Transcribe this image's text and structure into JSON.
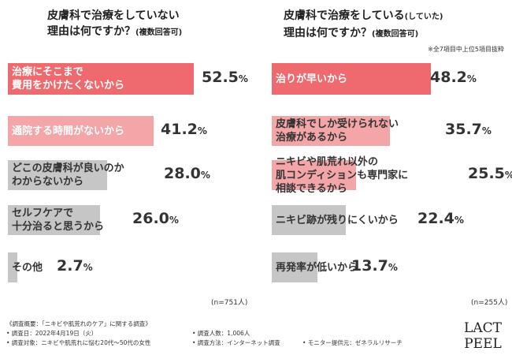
{
  "colors": {
    "dark": "#ee6a6e",
    "light": "#f4a5a7",
    "gray": "#c6c6c6",
    "text_on_dark": "#ffffff",
    "text_on_light": "#ffffff",
    "text_on_gray": "#333333"
  },
  "left": {
    "title_line1": "皮膚科で治療をしていない",
    "title_line2": "理由は何ですか？",
    "title_paren": "(複数回答可)",
    "n_label": "(n=751人)",
    "chart_data": {
      "type": "bar",
      "categories": [
        "治療にそこまで\n費用をかけたくないから",
        "通院する時間がないから",
        "どこの皮膚科が良いのか\nわからないから",
        "セルフケアで\n十分治ると思うから",
        "その他"
      ],
      "values": [
        52.5,
        41.2,
        28.0,
        26.0,
        2.7
      ],
      "value_labels": [
        "52.5",
        "41.2",
        "28.0",
        "26.0",
        "2.7"
      ],
      "unit": "%",
      "ylim": [
        0,
        60
      ]
    }
  },
  "right": {
    "title_line1": "皮膚科で治療をしている",
    "title_paren1": "(していた)",
    "title_line2": "理由は何ですか？",
    "title_paren2": "(複数回答可)",
    "note": "※全7項目中上位5項目抜粋",
    "n_label": "(n=255人)",
    "chart_data": {
      "type": "bar",
      "categories": [
        "治りが早いから",
        "皮膚科でしか受けられない\n治療があるから",
        "ニキビや肌荒れ以外の\n肌コンディションも専門家に\n相談できるから",
        "ニキビ跡が残りにくいから",
        "再発率が低いから"
      ],
      "values": [
        48.2,
        35.7,
        25.5,
        22.4,
        13.7
      ],
      "value_labels": [
        "48.2",
        "35.7",
        "25.5",
        "22.4",
        "13.7"
      ],
      "unit": "%",
      "ylim": [
        0,
        60
      ]
    }
  },
  "footer": {
    "survey": "《調査概要：「ニキビや肌荒れのケア」に関する調査》",
    "date": "• 調査日：2022年4月19日（火）",
    "target": "• 調査対象：ニキビや肌荒れに悩む20代～50代の女性",
    "people": "• 調査人数：1,006人",
    "method": "• 調査方法：インターネット調査",
    "provider": "• モニター提供元：ゼネラルリサーチ"
  },
  "logo": {
    "line1": "LACT",
    "line2": "PEEL"
  }
}
